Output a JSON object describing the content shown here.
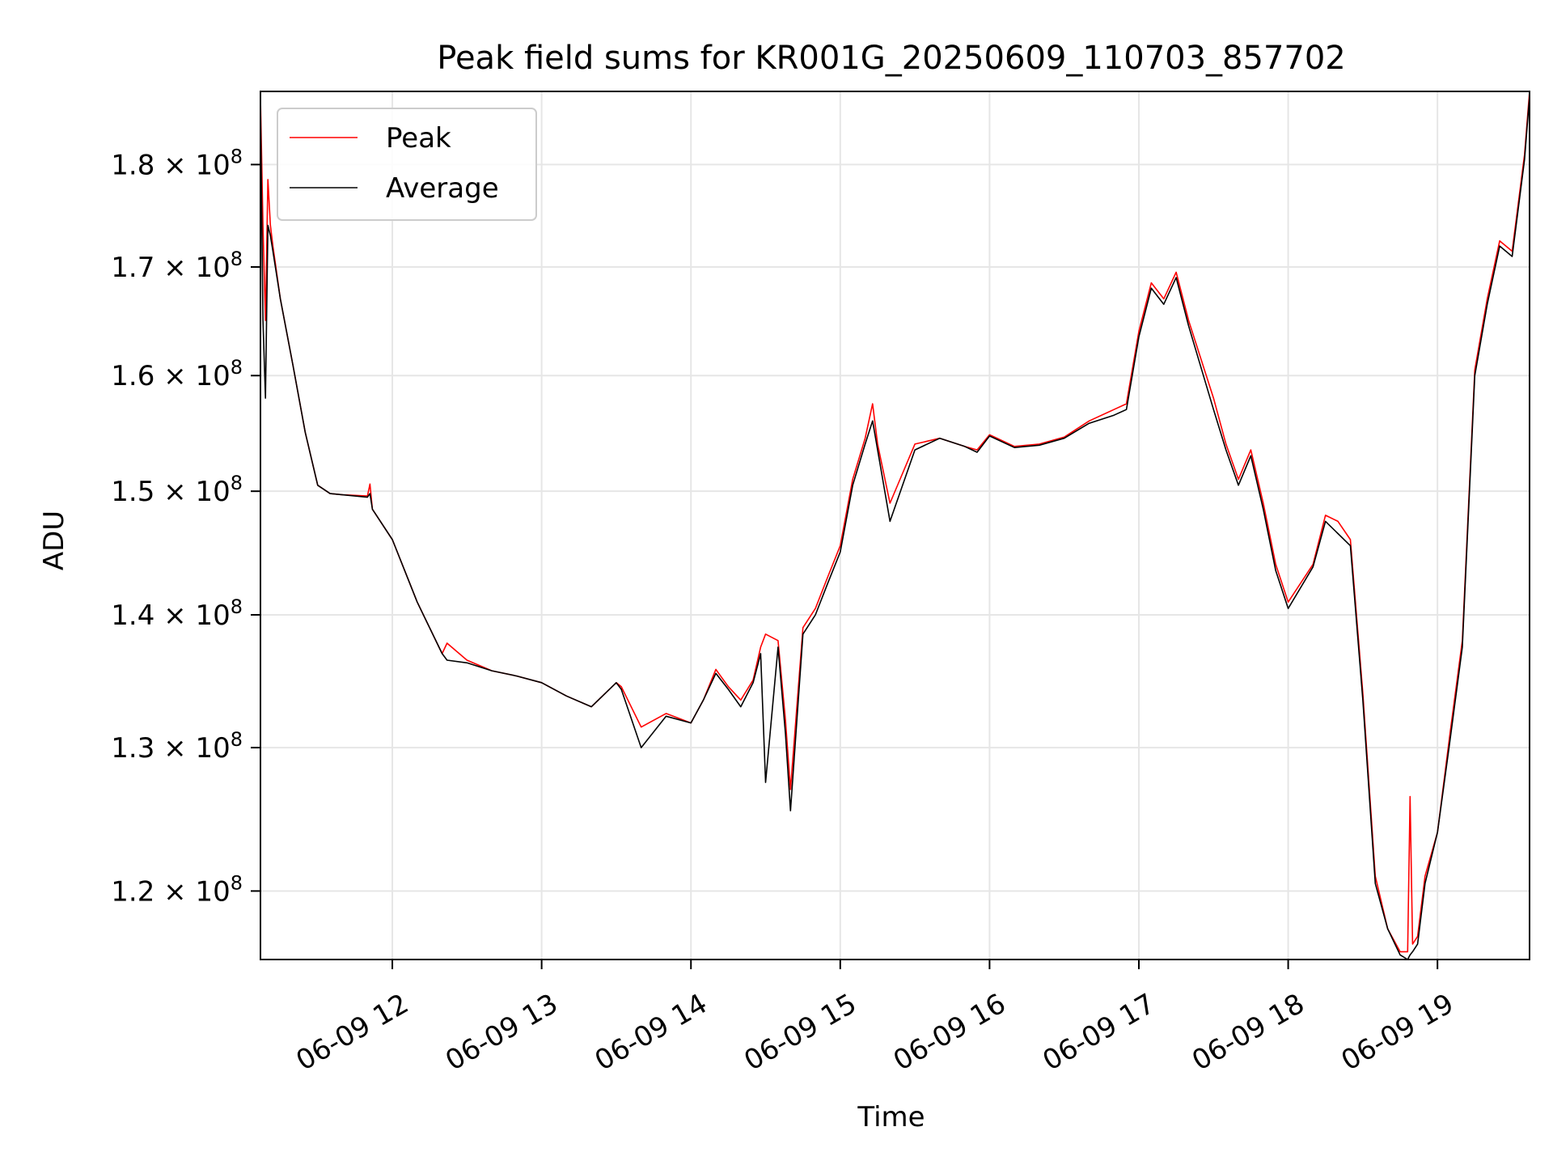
{
  "chart_data": {
    "type": "line",
    "title": "Peak field sums for KR001G_20250609_110703_857702",
    "xlabel": "Time",
    "ylabel": "ADU",
    "x_ticks": [
      "06-09 12",
      "06-09 13",
      "06-09 14",
      "06-09 15",
      "06-09 16",
      "06-09 17",
      "06-09 18",
      "06-09 19"
    ],
    "y_ticks": [
      {
        "value": 120000000,
        "mantissa": "1.2",
        "exponent": "8"
      },
      {
        "value": 130000000,
        "mantissa": "1.3",
        "exponent": "8"
      },
      {
        "value": 140000000,
        "mantissa": "1.4",
        "exponent": "8"
      },
      {
        "value": 150000000,
        "mantissa": "1.5",
        "exponent": "8"
      },
      {
        "value": 160000000,
        "mantissa": "1.6",
        "exponent": "8"
      },
      {
        "value": 170000000,
        "mantissa": "1.7",
        "exponent": "8"
      },
      {
        "value": 180000000,
        "mantissa": "1.8",
        "exponent": "8"
      }
    ],
    "x_range": [
      "2025-06-09 11:07",
      "2025-06-09 19:37"
    ],
    "y_range": [
      115500000,
      187500000
    ],
    "y_scale": "log",
    "grid": true,
    "legend_position": "top-left",
    "series": [
      {
        "name": "Peak",
        "color": "#ff0000",
        "x": [
          "2025-06-09 11:07",
          "2025-06-09 11:08",
          "2025-06-09 11:09",
          "2025-06-09 11:10",
          "2025-06-09 11:11",
          "2025-06-09 11:12",
          "2025-06-09 11:15",
          "2025-06-09 11:20",
          "2025-06-09 11:25",
          "2025-06-09 11:30",
          "2025-06-09 11:35",
          "2025-06-09 11:40",
          "2025-06-09 11:50",
          "2025-06-09 11:51",
          "2025-06-09 11:52",
          "2025-06-09 12:00",
          "2025-06-09 12:10",
          "2025-06-09 12:20",
          "2025-06-09 12:22",
          "2025-06-09 12:30",
          "2025-06-09 12:40",
          "2025-06-09 12:50",
          "2025-06-09 13:00",
          "2025-06-09 13:10",
          "2025-06-09 13:20",
          "2025-06-09 13:30",
          "2025-06-09 13:32",
          "2025-06-09 13:40",
          "2025-06-09 13:50",
          "2025-06-09 14:00",
          "2025-06-09 14:05",
          "2025-06-09 14:10",
          "2025-06-09 14:15",
          "2025-06-09 14:20",
          "2025-06-09 14:25",
          "2025-06-09 14:28",
          "2025-06-09 14:30",
          "2025-06-09 14:35",
          "2025-06-09 14:38",
          "2025-06-09 14:40",
          "2025-06-09 14:45",
          "2025-06-09 14:50",
          "2025-06-09 14:55",
          "2025-06-09 15:00",
          "2025-06-09 15:05",
          "2025-06-09 15:10",
          "2025-06-09 15:13",
          "2025-06-09 15:15",
          "2025-06-09 15:20",
          "2025-06-09 15:30",
          "2025-06-09 15:40",
          "2025-06-09 15:50",
          "2025-06-09 15:55",
          "2025-06-09 16:00",
          "2025-06-09 16:10",
          "2025-06-09 16:20",
          "2025-06-09 16:30",
          "2025-06-09 16:40",
          "2025-06-09 16:50",
          "2025-06-09 16:55",
          "2025-06-09 17:00",
          "2025-06-09 17:05",
          "2025-06-09 17:10",
          "2025-06-09 17:15",
          "2025-06-09 17:20",
          "2025-06-09 17:30",
          "2025-06-09 17:35",
          "2025-06-09 17:40",
          "2025-06-09 17:45",
          "2025-06-09 17:50",
          "2025-06-09 17:55",
          "2025-06-09 18:00",
          "2025-06-09 18:10",
          "2025-06-09 18:15",
          "2025-06-09 18:20",
          "2025-06-09 18:25",
          "2025-06-09 18:30",
          "2025-06-09 18:35",
          "2025-06-09 18:40",
          "2025-06-09 18:45",
          "2025-06-09 18:48",
          "2025-06-09 18:49",
          "2025-06-09 18:50",
          "2025-06-09 18:52",
          "2025-06-09 18:55",
          "2025-06-09 19:00",
          "2025-06-09 19:05",
          "2025-06-09 19:10",
          "2025-06-09 19:15",
          "2025-06-09 19:20",
          "2025-06-09 19:25",
          "2025-06-09 19:30",
          "2025-06-09 19:35",
          "2025-06-09 19:37"
        ],
        "values": [
          187000000,
          174000000,
          165000000,
          178500000,
          174000000,
          172000000,
          167000000,
          161000000,
          155000000,
          150500000,
          149800000,
          149700000,
          149600000,
          150600000,
          148500000,
          146000000,
          141000000,
          137000000,
          137800000,
          136500000,
          135700000,
          135300000,
          134800000,
          133800000,
          133000000,
          134800000,
          134500000,
          131500000,
          132500000,
          131800000,
          133500000,
          135800000,
          134500000,
          133500000,
          135000000,
          137500000,
          138500000,
          138000000,
          132000000,
          127000000,
          139000000,
          140500000,
          143000000,
          145500000,
          151000000,
          154500000,
          157500000,
          154000000,
          149000000,
          154000000,
          154500000,
          153800000,
          153500000,
          154800000,
          153800000,
          154000000,
          154600000,
          156000000,
          157000000,
          157500000,
          164000000,
          168500000,
          167000000,
          169500000,
          165000000,
          158000000,
          154000000,
          151000000,
          153500000,
          149000000,
          144000000,
          141000000,
          144000000,
          148000000,
          147500000,
          146000000,
          134000000,
          121000000,
          117500000,
          116000000,
          116000000,
          126500000,
          116500000,
          117000000,
          121000000,
          124000000,
          131000000,
          138000000,
          160500000,
          167000000,
          172500000,
          171500000,
          181000000,
          187500000
        ]
      },
      {
        "name": "Average",
        "color": "#000000",
        "x": [
          "2025-06-09 11:07",
          "2025-06-09 11:08",
          "2025-06-09 11:09",
          "2025-06-09 11:10",
          "2025-06-09 11:11",
          "2025-06-09 11:12",
          "2025-06-09 11:15",
          "2025-06-09 11:20",
          "2025-06-09 11:25",
          "2025-06-09 11:30",
          "2025-06-09 11:35",
          "2025-06-09 11:40",
          "2025-06-09 11:50",
          "2025-06-09 11:51",
          "2025-06-09 11:52",
          "2025-06-09 12:00",
          "2025-06-09 12:10",
          "2025-06-09 12:20",
          "2025-06-09 12:22",
          "2025-06-09 12:30",
          "2025-06-09 12:40",
          "2025-06-09 12:50",
          "2025-06-09 13:00",
          "2025-06-09 13:10",
          "2025-06-09 13:20",
          "2025-06-09 13:30",
          "2025-06-09 13:32",
          "2025-06-09 13:40",
          "2025-06-09 13:50",
          "2025-06-09 14:00",
          "2025-06-09 14:05",
          "2025-06-09 14:10",
          "2025-06-09 14:15",
          "2025-06-09 14:20",
          "2025-06-09 14:25",
          "2025-06-09 14:28",
          "2025-06-09 14:30",
          "2025-06-09 14:35",
          "2025-06-09 14:38",
          "2025-06-09 14:40",
          "2025-06-09 14:45",
          "2025-06-09 14:50",
          "2025-06-09 14:55",
          "2025-06-09 15:00",
          "2025-06-09 15:05",
          "2025-06-09 15:10",
          "2025-06-09 15:13",
          "2025-06-09 15:15",
          "2025-06-09 15:20",
          "2025-06-09 15:30",
          "2025-06-09 15:40",
          "2025-06-09 15:50",
          "2025-06-09 15:55",
          "2025-06-09 16:00",
          "2025-06-09 16:10",
          "2025-06-09 16:20",
          "2025-06-09 16:30",
          "2025-06-09 16:40",
          "2025-06-09 16:50",
          "2025-06-09 16:55",
          "2025-06-09 17:00",
          "2025-06-09 17:05",
          "2025-06-09 17:10",
          "2025-06-09 17:15",
          "2025-06-09 17:20",
          "2025-06-09 17:30",
          "2025-06-09 17:35",
          "2025-06-09 17:40",
          "2025-06-09 17:45",
          "2025-06-09 17:50",
          "2025-06-09 17:55",
          "2025-06-09 18:00",
          "2025-06-09 18:10",
          "2025-06-09 18:15",
          "2025-06-09 18:20",
          "2025-06-09 18:25",
          "2025-06-09 18:30",
          "2025-06-09 18:35",
          "2025-06-09 18:40",
          "2025-06-09 18:45",
          "2025-06-09 18:48",
          "2025-06-09 18:49",
          "2025-06-09 18:50",
          "2025-06-09 18:52",
          "2025-06-09 18:55",
          "2025-06-09 19:00",
          "2025-06-09 19:05",
          "2025-06-09 19:10",
          "2025-06-09 19:15",
          "2025-06-09 19:20",
          "2025-06-09 19:25",
          "2025-06-09 19:30",
          "2025-06-09 19:35",
          "2025-06-09 19:37"
        ],
        "values": [
          186500000,
          165000000,
          158000000,
          174000000,
          173000000,
          171500000,
          167000000,
          161000000,
          155000000,
          150500000,
          149800000,
          149700000,
          149500000,
          149800000,
          148500000,
          146000000,
          141000000,
          137000000,
          136500000,
          136300000,
          135700000,
          135300000,
          134800000,
          133800000,
          133000000,
          134800000,
          134300000,
          130000000,
          132300000,
          131800000,
          133500000,
          135500000,
          134300000,
          133000000,
          134800000,
          137000000,
          127500000,
          137500000,
          131000000,
          125500000,
          138500000,
          140000000,
          142500000,
          145000000,
          150500000,
          154000000,
          156000000,
          153500000,
          147500000,
          153500000,
          154500000,
          153800000,
          153300000,
          154700000,
          153700000,
          153900000,
          154500000,
          155800000,
          156500000,
          157000000,
          163500000,
          168000000,
          166500000,
          169000000,
          164500000,
          157000000,
          153500000,
          150500000,
          153000000,
          148500000,
          143500000,
          140500000,
          143800000,
          147500000,
          146500000,
          145500000,
          133500000,
          120500000,
          117500000,
          115800000,
          115500000,
          115800000,
          116000000,
          116500000,
          120500000,
          124000000,
          130500000,
          137500000,
          160000000,
          166500000,
          172000000,
          171000000,
          180500000,
          187000000
        ]
      }
    ]
  }
}
